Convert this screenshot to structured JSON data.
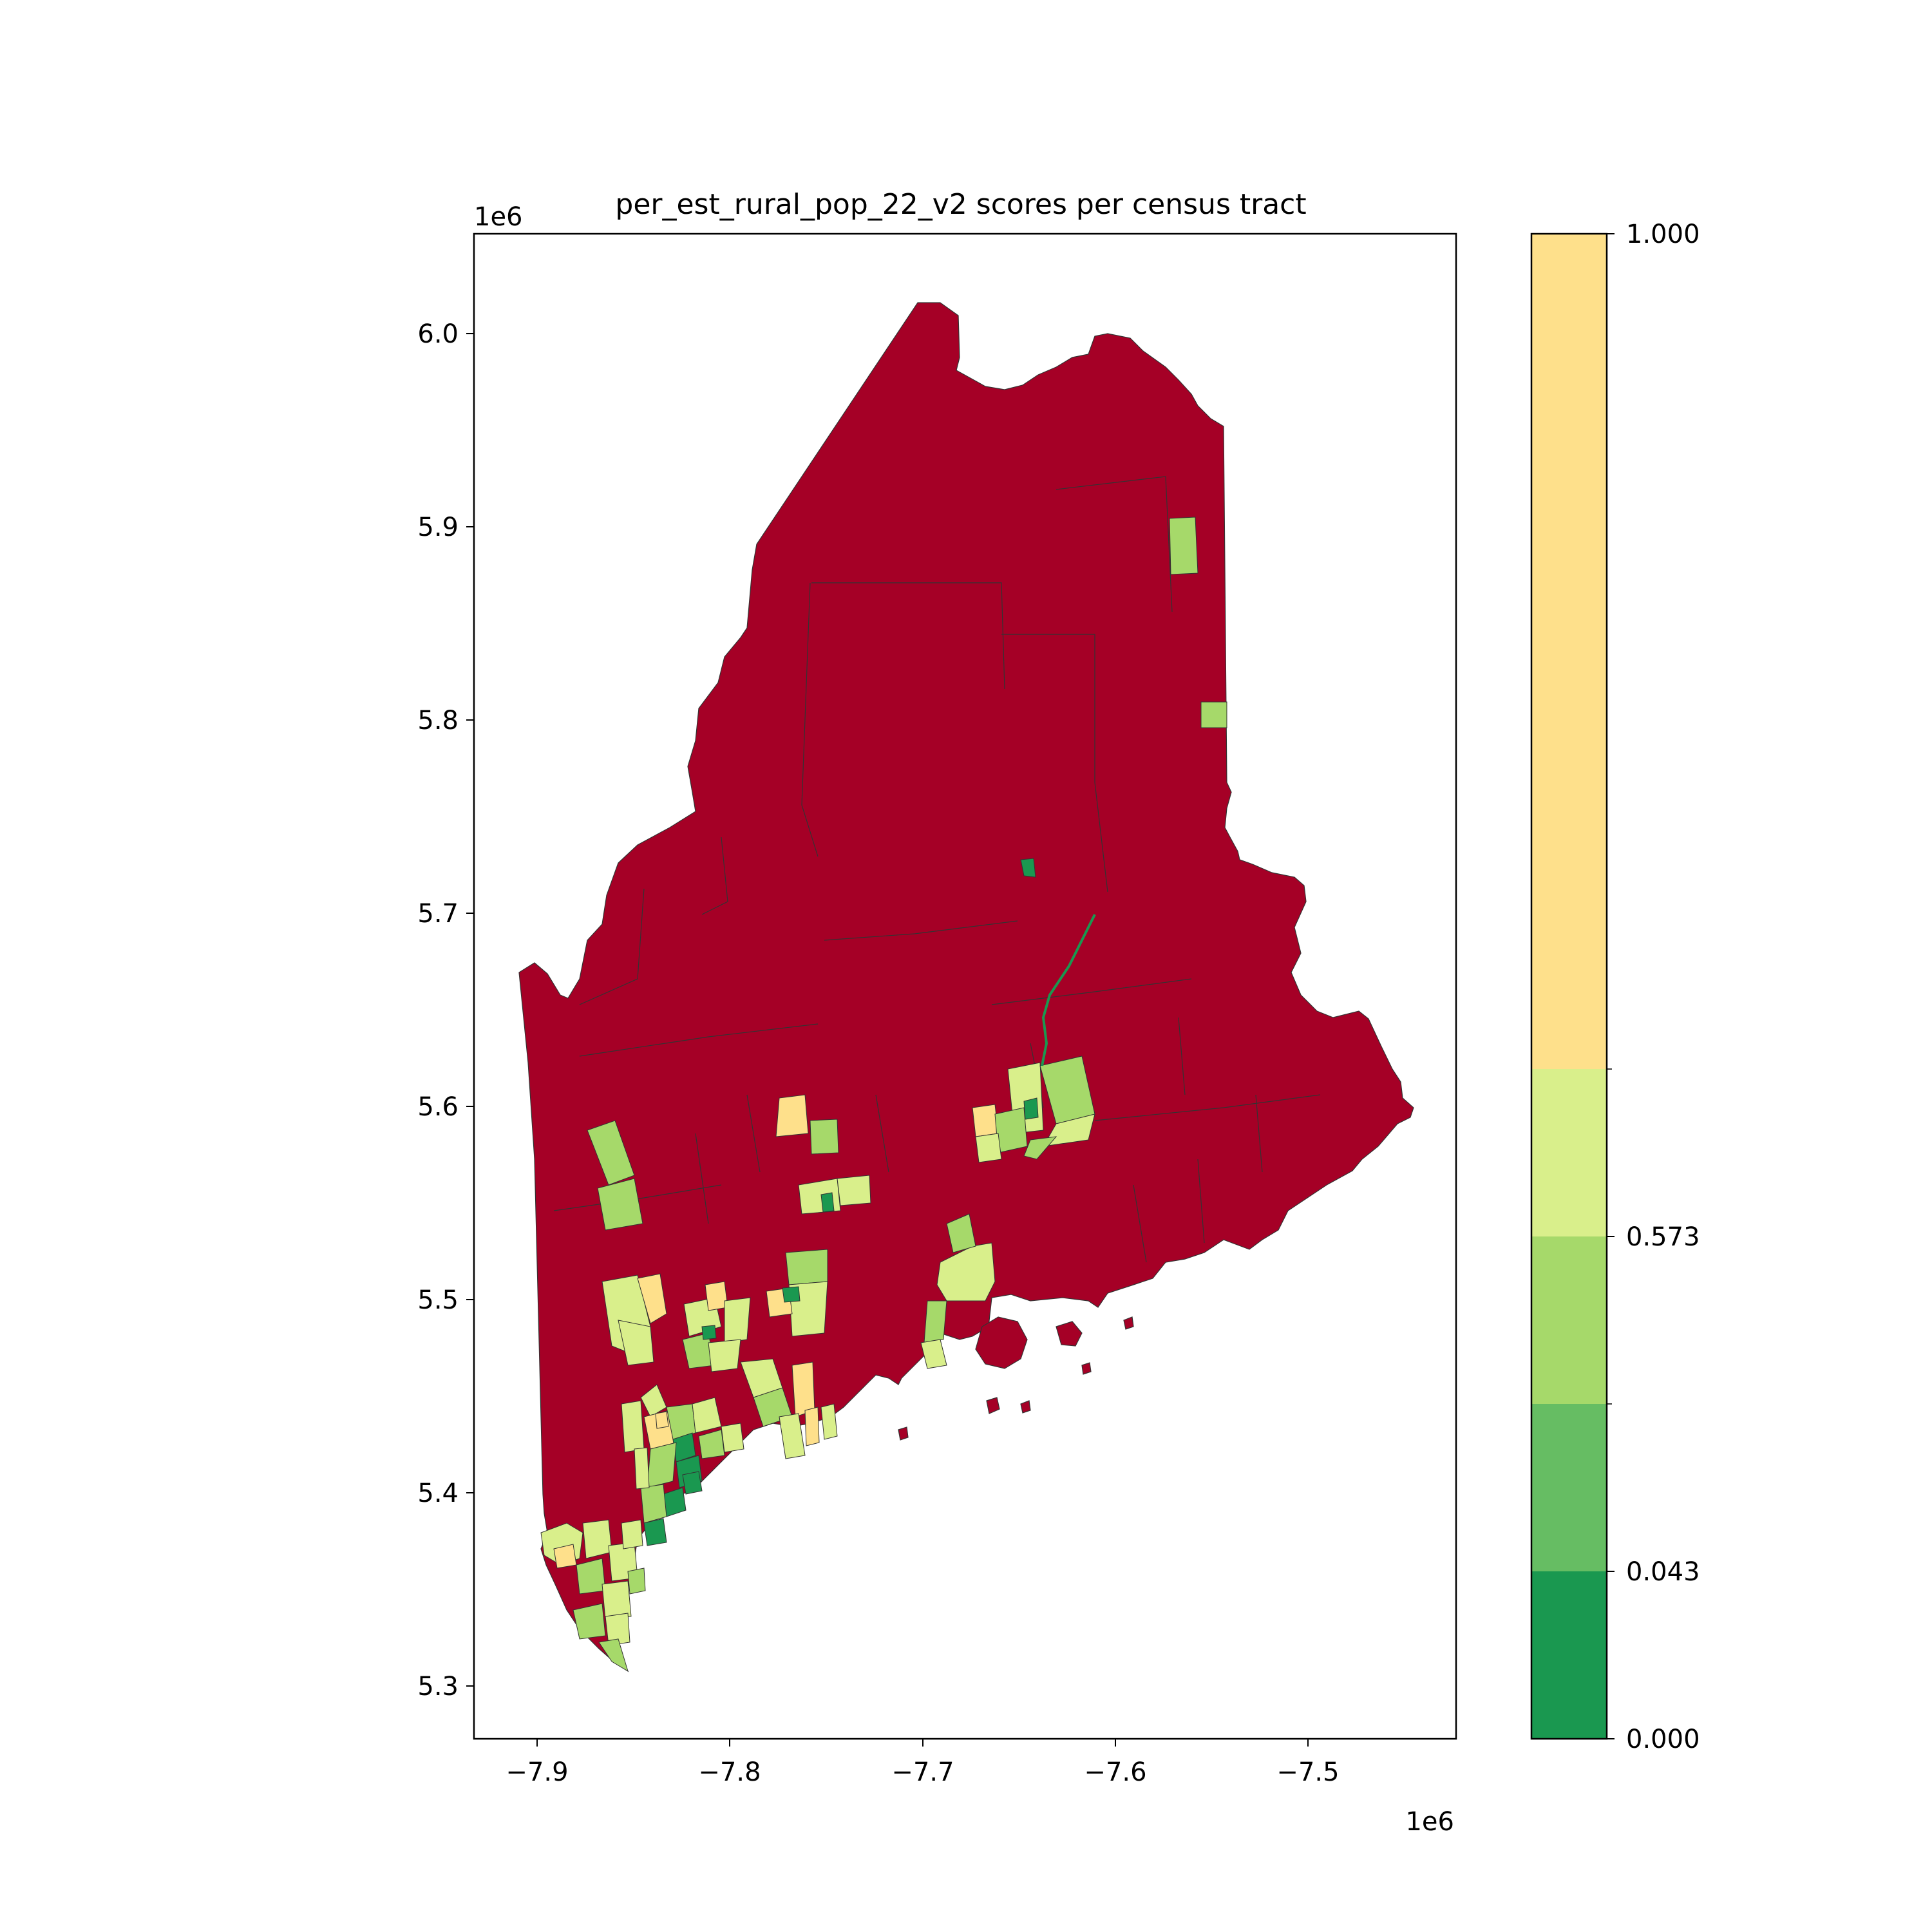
{
  "title": "per_est_rural_pop_22_v2 scores per census tract",
  "axes": {
    "x_ticks": [
      "−7.9",
      "−7.8",
      "−7.7",
      "−7.6",
      "−7.5"
    ],
    "x_exponent": "1e6",
    "y_ticks": [
      "5.3",
      "5.4",
      "5.5",
      "5.6",
      "5.7",
      "5.8",
      "5.9",
      "6.0"
    ],
    "y_exponent": "1e6"
  },
  "colorbar": {
    "tick_labels": [
      "0.000",
      "0.043",
      "0.573",
      "1.000"
    ],
    "bins": [
      {
        "color": "#1a9850"
      },
      {
        "color": "#66bd63"
      },
      {
        "color": "#a6d96a"
      },
      {
        "color": "#d9ef8b"
      },
      {
        "color": "#fee08b"
      }
    ]
  },
  "map": {
    "rural_color": "#a50026",
    "border_color": "#333333"
  }
}
